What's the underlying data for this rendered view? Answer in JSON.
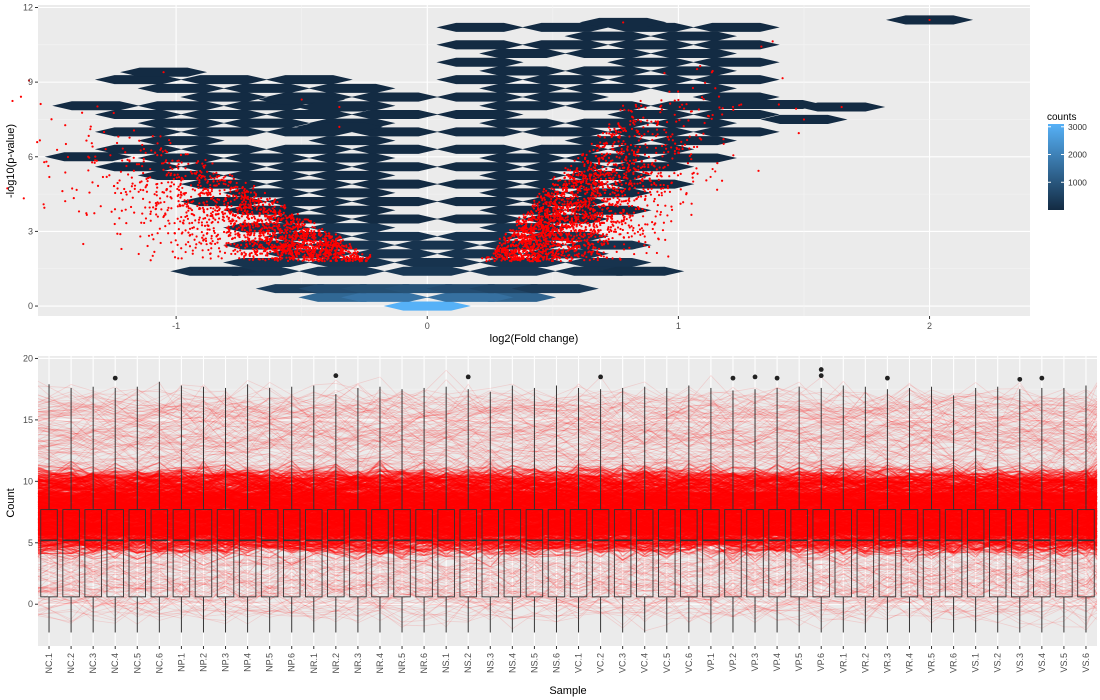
{
  "colors": {
    "panel_bg": "#ebebeb",
    "grid_major": "#ffffff",
    "hex_low": "#132b43",
    "hex_high": "#56b1f7",
    "points": "#ff0000",
    "box_line": "#333333"
  },
  "chart_data": [
    {
      "type": "scatter",
      "subtype": "hexbin-volcano",
      "xlabel": "log2(Fold change)",
      "ylabel": "-log10(p-value)",
      "xlim": [
        -1.55,
        2.4
      ],
      "ylim": [
        -0.4,
        12.1
      ],
      "x_ticks": [
        -1,
        0,
        1,
        2
      ],
      "x_tick_labels": [
        "-1",
        "0",
        "1",
        "2"
      ],
      "y_ticks": [
        0,
        3,
        6,
        9,
        12
      ],
      "y_tick_labels": [
        "0",
        "3",
        "6",
        "9",
        "12"
      ],
      "grid": true,
      "legend": {
        "title": "counts",
        "position": "right",
        "range": [
          0,
          3100
        ],
        "breaks": [
          1000,
          2000,
          3000
        ],
        "break_labels": [
          "1000",
          "2000",
          "3000"
        ]
      },
      "hexbins": [
        {
          "x": 0.0,
          "y": 0.0,
          "count": 3100
        },
        {
          "x": -0.34,
          "y": 0.35,
          "count": 1400
        },
        {
          "x": 0.34,
          "y": 0.35,
          "count": 1300
        },
        {
          "x": -0.17,
          "y": 0.35,
          "count": 1700
        },
        {
          "x": 0.17,
          "y": 0.35,
          "count": 1600
        },
        {
          "x": -0.51,
          "y": 0.7,
          "count": 400
        },
        {
          "x": -0.34,
          "y": 0.7,
          "count": 700
        },
        {
          "x": -0.17,
          "y": 0.7,
          "count": 800
        },
        {
          "x": 0.0,
          "y": 0.7,
          "count": 900
        },
        {
          "x": 0.17,
          "y": 0.7,
          "count": 750
        },
        {
          "x": 0.34,
          "y": 0.7,
          "count": 600
        },
        {
          "x": 0.51,
          "y": 0.7,
          "count": 350
        },
        {
          "x": -0.68,
          "y": 1.4,
          "count": 200
        },
        {
          "x": -0.34,
          "y": 1.4,
          "count": 250
        },
        {
          "x": 0.0,
          "y": 1.4,
          "count": 280
        },
        {
          "x": 0.34,
          "y": 1.4,
          "count": 240
        },
        {
          "x": 0.68,
          "y": 1.4,
          "count": 180
        },
        {
          "x": -0.85,
          "y": 1.4,
          "count": 120
        },
        {
          "x": 0.85,
          "y": 1.4,
          "count": 110
        }
      ],
      "upper_band": {
        "left_x_range": [
          -1.55,
          -0.15
        ],
        "right_x_range": [
          0.15,
          1.55
        ],
        "outliers": [
          {
            "x": -1.05,
            "y": 9.4
          },
          {
            "x": -0.5,
            "y": 8.3
          },
          {
            "x": -0.35,
            "y": 8.0
          },
          {
            "x": 0.78,
            "y": 11.4
          },
          {
            "x": 2.0,
            "y": 11.5
          },
          {
            "x": 1.25,
            "y": 8.1
          },
          {
            "x": 1.5,
            "y": 7.5
          },
          {
            "x": 1.65,
            "y": 8.0
          },
          {
            "x": 1.4,
            "y": 8.1
          },
          {
            "x": -1.35,
            "y": 6.0
          },
          {
            "x": -0.35,
            "y": 7.2
          }
        ]
      }
    },
    {
      "type": "box",
      "xlabel": "Sample",
      "ylabel": "Count",
      "ylim": [
        -3.4,
        20.2
      ],
      "y_ticks": [
        0,
        5,
        10,
        15,
        20
      ],
      "y_tick_labels": [
        "0",
        "5",
        "10",
        "15",
        "20"
      ],
      "grid": true,
      "categories": [
        "NC.1",
        "NC.2",
        "NC.3",
        "NC.4",
        "NC.5",
        "NC.6",
        "NP.1",
        "NP.2",
        "NP.3",
        "NP.4",
        "NP.5",
        "NP.6",
        "NR.1",
        "NR.2",
        "NR.3",
        "NR.4",
        "NR.5",
        "NR.6",
        "NS.1",
        "NS.2",
        "NS.3",
        "NS.4",
        "NS.5",
        "NS.6",
        "VC.1",
        "VC.2",
        "VC.3",
        "VC.4",
        "VC.5",
        "VC.6",
        "VP.1",
        "VP.2",
        "VP.3",
        "VP.4",
        "VP.5",
        "VP.6",
        "VR.1",
        "VR.2",
        "VR.3",
        "VR.4",
        "VR.5",
        "VR.6",
        "VS.1",
        "VS.2",
        "VS.3",
        "VS.4",
        "VS.5",
        "VS.6"
      ],
      "box": {
        "min": -2.3,
        "q1": 0.6,
        "median": 5.2,
        "q3": 7.7,
        "max": 17.8
      },
      "whisker_max": [
        17.9,
        17.6,
        17.7,
        17.6,
        17.7,
        18.1,
        17.8,
        17.7,
        17.6,
        17.9,
        17.6,
        17.7,
        17.8,
        17.1,
        17.6,
        17.7,
        17.5,
        17.6,
        17.7,
        17.5,
        17.3,
        17.8,
        17.6,
        17.8,
        17.6,
        17.5,
        17.6,
        17.7,
        17.6,
        17.8,
        17.6,
        17.4,
        17.5,
        17.6,
        17.7,
        17.6,
        17.8,
        17.7,
        17.5,
        17.6,
        17.7,
        17.0,
        17.6,
        17.7,
        17.5,
        17.6,
        17.6,
        17.8
      ],
      "outliers": [
        {
          "sample": "NC.4",
          "y": 18.4
        },
        {
          "sample": "NR.2",
          "y": 18.6
        },
        {
          "sample": "NS.2",
          "y": 18.5
        },
        {
          "sample": "VC.2",
          "y": 18.5
        },
        {
          "sample": "VP.2",
          "y": 18.4
        },
        {
          "sample": "VP.3",
          "y": 18.5
        },
        {
          "sample": "VP.4",
          "y": 18.4
        },
        {
          "sample": "VP.6",
          "y": 19.1
        },
        {
          "sample": "VP.6",
          "y": 18.6
        },
        {
          "sample": "VR.3",
          "y": 18.4
        },
        {
          "sample": "VS.3",
          "y": 18.3
        },
        {
          "sample": "VS.4",
          "y": 18.4
        }
      ],
      "lines_overlay": {
        "color": "#ff0000",
        "dense_range": [
          4.5,
          10.5
        ],
        "range": [
          -1.0,
          17.0
        ]
      }
    }
  ]
}
